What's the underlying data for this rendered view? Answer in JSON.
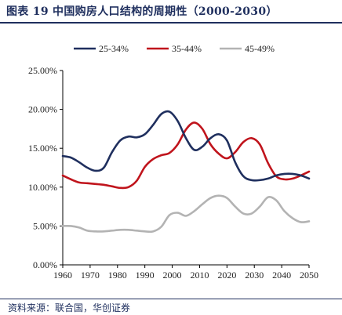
{
  "title": "图表 19   中国购房人口结构的周期性（2000-2030）",
  "source": "资料来源：联合国，华创证券",
  "chart_data": {
    "type": "line",
    "title": "中国购房人口结构的周期性（2000-2030）",
    "xlabel": "",
    "ylabel": "",
    "xlim": [
      1960,
      2050
    ],
    "ylim": [
      0,
      0.25
    ],
    "x_ticks": [
      "1960",
      "1970",
      "1980",
      "1990",
      "2000",
      "2010",
      "2020",
      "2030",
      "2040",
      "2050"
    ],
    "y_ticks": [
      "0.00%",
      "5.00%",
      "10.00%",
      "15.00%",
      "20.00%",
      "25.00%"
    ],
    "grid": false,
    "legend_position": "top",
    "series": [
      {
        "name": "25-34%",
        "color": "#1f2f5e",
        "points": [
          [
            1960,
            0.14
          ],
          [
            1963,
            0.138
          ],
          [
            1966,
            0.132
          ],
          [
            1969,
            0.125
          ],
          [
            1972,
            0.121
          ],
          [
            1975,
            0.125
          ],
          [
            1978,
            0.145
          ],
          [
            1981,
            0.16
          ],
          [
            1984,
            0.165
          ],
          [
            1987,
            0.164
          ],
          [
            1990,
            0.168
          ],
          [
            1993,
            0.18
          ],
          [
            1996,
            0.194
          ],
          [
            1999,
            0.197
          ],
          [
            2002,
            0.185
          ],
          [
            2005,
            0.163
          ],
          [
            2008,
            0.148
          ],
          [
            2011,
            0.152
          ],
          [
            2014,
            0.163
          ],
          [
            2017,
            0.168
          ],
          [
            2020,
            0.16
          ],
          [
            2023,
            0.132
          ],
          [
            2026,
            0.114
          ],
          [
            2029,
            0.109
          ],
          [
            2032,
            0.109
          ],
          [
            2035,
            0.111
          ],
          [
            2038,
            0.115
          ],
          [
            2041,
            0.117
          ],
          [
            2044,
            0.117
          ],
          [
            2047,
            0.115
          ],
          [
            2050,
            0.111
          ]
        ]
      },
      {
        "name": "35-44%",
        "color": "#c0141c",
        "points": [
          [
            1960,
            0.115
          ],
          [
            1963,
            0.11
          ],
          [
            1966,
            0.106
          ],
          [
            1969,
            0.105
          ],
          [
            1972,
            0.104
          ],
          [
            1975,
            0.103
          ],
          [
            1978,
            0.101
          ],
          [
            1981,
            0.099
          ],
          [
            1984,
            0.1
          ],
          [
            1987,
            0.108
          ],
          [
            1990,
            0.126
          ],
          [
            1993,
            0.136
          ],
          [
            1996,
            0.141
          ],
          [
            1999,
            0.144
          ],
          [
            2002,
            0.155
          ],
          [
            2005,
            0.174
          ],
          [
            2008,
            0.183
          ],
          [
            2011,
            0.175
          ],
          [
            2014,
            0.155
          ],
          [
            2017,
            0.143
          ],
          [
            2020,
            0.137
          ],
          [
            2023,
            0.145
          ],
          [
            2026,
            0.158
          ],
          [
            2029,
            0.163
          ],
          [
            2032,
            0.155
          ],
          [
            2035,
            0.131
          ],
          [
            2038,
            0.114
          ],
          [
            2041,
            0.11
          ],
          [
            2044,
            0.111
          ],
          [
            2047,
            0.115
          ],
          [
            2050,
            0.12
          ]
        ]
      },
      {
        "name": "45-49%",
        "color": "#b3b3b3",
        "points": [
          [
            1960,
            0.05
          ],
          [
            1963,
            0.05
          ],
          [
            1966,
            0.048
          ],
          [
            1969,
            0.044
          ],
          [
            1972,
            0.043
          ],
          [
            1975,
            0.043
          ],
          [
            1978,
            0.044
          ],
          [
            1981,
            0.045
          ],
          [
            1984,
            0.045
          ],
          [
            1987,
            0.044
          ],
          [
            1990,
            0.043
          ],
          [
            1993,
            0.043
          ],
          [
            1996,
            0.049
          ],
          [
            1999,
            0.064
          ],
          [
            2002,
            0.067
          ],
          [
            2005,
            0.063
          ],
          [
            2008,
            0.069
          ],
          [
            2011,
            0.078
          ],
          [
            2014,
            0.086
          ],
          [
            2017,
            0.089
          ],
          [
            2020,
            0.086
          ],
          [
            2023,
            0.075
          ],
          [
            2026,
            0.066
          ],
          [
            2029,
            0.066
          ],
          [
            2032,
            0.075
          ],
          [
            2035,
            0.087
          ],
          [
            2038,
            0.083
          ],
          [
            2041,
            0.069
          ],
          [
            2044,
            0.06
          ],
          [
            2047,
            0.055
          ],
          [
            2050,
            0.056
          ]
        ]
      }
    ]
  }
}
